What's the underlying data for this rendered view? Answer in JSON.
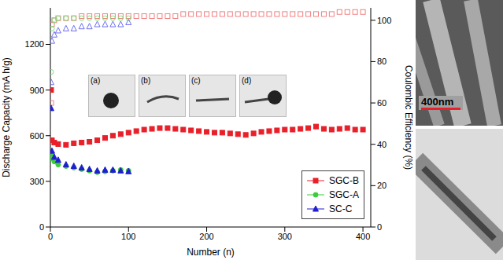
{
  "chart_data": {
    "type": "scatter",
    "xlabel": "Number (n)",
    "ylabel": "Discharge Capacity (mA h/g)",
    "y2label": "Coulombic Efficiency (%)",
    "xlim": [
      0,
      410
    ],
    "xticks": [
      0,
      100,
      200,
      300,
      400
    ],
    "ylim": [
      0,
      1440
    ],
    "yticks": [
      0,
      300,
      600,
      900,
      1200
    ],
    "y2lim": [
      0,
      106
    ],
    "y2ticks": [
      0,
      20,
      40,
      60,
      80,
      100
    ],
    "grid": false,
    "legend": "lower right",
    "series": [
      {
        "name": "SGC-B",
        "color": "#e8202a",
        "marker": "square",
        "x": [
          1,
          2,
          5,
          10,
          20,
          30,
          40,
          50,
          60,
          70,
          80,
          90,
          100,
          110,
          120,
          130,
          140,
          150,
          160,
          170,
          180,
          190,
          200,
          210,
          220,
          230,
          240,
          250,
          260,
          270,
          280,
          290,
          300,
          310,
          320,
          330,
          340,
          350,
          360,
          370,
          380,
          390,
          400
        ],
        "values": [
          900,
          570,
          555,
          545,
          540,
          550,
          555,
          560,
          570,
          585,
          600,
          610,
          620,
          630,
          640,
          645,
          650,
          650,
          645,
          640,
          635,
          630,
          625,
          620,
          620,
          615,
          610,
          605,
          615,
          625,
          630,
          635,
          640,
          640,
          645,
          650,
          660,
          645,
          640,
          645,
          650,
          640,
          640
        ],
        "efficiency": {
          "color": "#f08080",
          "marker": "open_square",
          "axis": "y2",
          "values": [
            60,
            98,
            100,
            101,
            101,
            101,
            102,
            102,
            102,
            102,
            102,
            102,
            102,
            102,
            102,
            102,
            102,
            102,
            102,
            103,
            103,
            103,
            103,
            103,
            103,
            103,
            103,
            103,
            103,
            103,
            103,
            103,
            103,
            103,
            103,
            103,
            103,
            103,
            103,
            104,
            104,
            104,
            104
          ]
        }
      },
      {
        "name": "SGC-A",
        "color": "#3ccc3c",
        "marker": "circle",
        "x": [
          1,
          2,
          5,
          10,
          20,
          30,
          40,
          50,
          60,
          70,
          80,
          90,
          100
        ],
        "values": [
          480,
          450,
          430,
          410,
          400,
          390,
          380,
          370,
          360,
          365,
          370,
          375,
          370
        ],
        "efficiency": {
          "color": "#7de07d",
          "marker": "open_circle",
          "axis": "y2",
          "values": [
            75,
            96,
            100,
            101,
            101,
            101,
            101,
            101,
            101,
            101,
            101,
            101,
            101
          ]
        }
      },
      {
        "name": "SC-C",
        "color": "#1f1fd0",
        "marker": "triangle",
        "x": [
          1,
          2,
          5,
          10,
          20,
          30,
          40,
          50,
          60,
          70,
          80,
          90,
          100
        ],
        "values": [
          780,
          500,
          460,
          440,
          410,
          400,
          390,
          380,
          370,
          375,
          375,
          370,
          365
        ],
        "efficiency": {
          "color": "#6c6cf0",
          "marker": "open_triangle",
          "axis": "y2",
          "values": [
            70,
            90,
            93,
            95,
            96,
            96,
            97,
            97,
            98,
            98,
            98,
            98,
            99
          ]
        }
      }
    ]
  },
  "panels": {
    "insets": {
      "labels": [
        "(a)",
        "(b)",
        "(c)",
        "(d)"
      ]
    },
    "micrograph": {
      "scale_bar": "400nm"
    }
  }
}
